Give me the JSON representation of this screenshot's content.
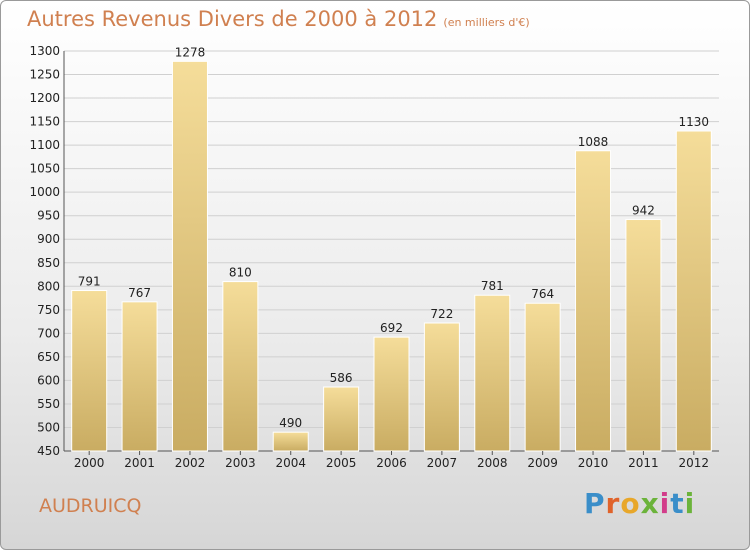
{
  "title": "Autres Revenus Divers de 2000 à 2012",
  "subtitle": "(en milliers d'€)",
  "city": "AUDRUICQ",
  "brand": {
    "text": "Proxiti",
    "letters": [
      "P",
      "r",
      "o",
      "x",
      "i",
      "t",
      "i"
    ],
    "colors": [
      "#3a8ec9",
      "#e0632b",
      "#e8a72a",
      "#6bb33a",
      "#d23d8a",
      "#3a8ec9",
      "#6bb33a"
    ]
  },
  "colors": {
    "title": "#d08050",
    "bar_light": "#f5dd9a",
    "bar_dark": "#c9ac62"
  },
  "chart_data": {
    "type": "bar",
    "title": "Autres Revenus Divers de 2000 à 2012 (en milliers d'€)",
    "categories": [
      "2000",
      "2001",
      "2002",
      "2003",
      "2004",
      "2005",
      "2006",
      "2007",
      "2008",
      "2009",
      "2010",
      "2011",
      "2012"
    ],
    "values": [
      791,
      767,
      1278,
      810,
      490,
      586,
      692,
      722,
      781,
      764,
      1088,
      942,
      1130
    ],
    "ylim": [
      450,
      1300
    ],
    "yticks": [
      450,
      500,
      550,
      600,
      650,
      700,
      750,
      800,
      850,
      900,
      950,
      1000,
      1050,
      1100,
      1150,
      1200,
      1250,
      1300
    ],
    "grid": true
  }
}
